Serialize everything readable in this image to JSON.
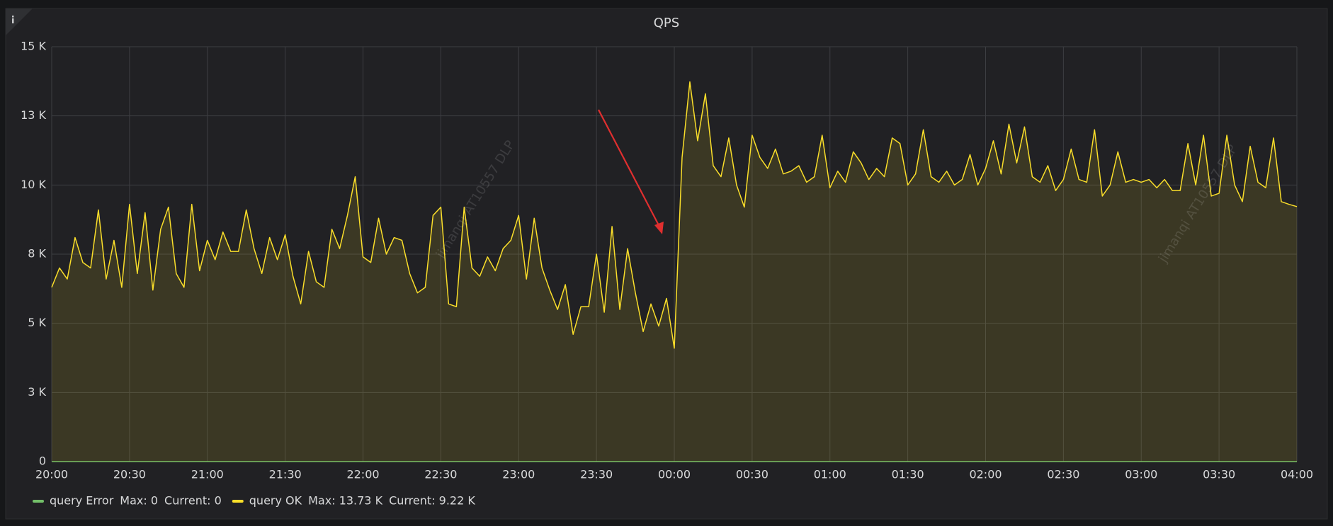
{
  "chart_data": {
    "type": "line",
    "title": "QPS",
    "watermark": "jimanqi AT10557 DLP",
    "ylim": [
      0,
      15000
    ],
    "yticks": [
      0,
      {
        "value": 2500,
        "label": "3 K"
      },
      {
        "value": 5000,
        "label": "5 K"
      },
      {
        "value": 7500,
        "label": "8 K"
      },
      {
        "value": 10000,
        "label": "10 K"
      },
      {
        "value": 12500,
        "label": "13 K"
      },
      {
        "value": 15000,
        "label": "15 K"
      }
    ],
    "xlim": [
      "20:00",
      "04:00"
    ],
    "xticks": [
      "20:00",
      "20:30",
      "21:00",
      "21:30",
      "22:00",
      "22:30",
      "23:00",
      "23:30",
      "00:00",
      "00:30",
      "01:00",
      "01:30",
      "02:00",
      "02:30",
      "03:00",
      "03:30",
      "04:00"
    ],
    "grid": true,
    "x": [
      "20:00",
      "20:03",
      "20:06",
      "20:09",
      "20:12",
      "20:15",
      "20:18",
      "20:21",
      "20:24",
      "20:27",
      "20:30",
      "20:33",
      "20:36",
      "20:39",
      "20:42",
      "20:45",
      "20:48",
      "20:51",
      "20:54",
      "20:57",
      "21:00",
      "21:03",
      "21:06",
      "21:09",
      "21:12",
      "21:15",
      "21:18",
      "21:21",
      "21:24",
      "21:27",
      "21:30",
      "21:33",
      "21:36",
      "21:39",
      "21:42",
      "21:45",
      "21:48",
      "21:51",
      "21:54",
      "21:57",
      "22:00",
      "22:03",
      "22:06",
      "22:09",
      "22:12",
      "22:15",
      "22:18",
      "22:21",
      "22:24",
      "22:27",
      "22:30",
      "22:33",
      "22:36",
      "22:39",
      "22:42",
      "22:45",
      "22:48",
      "22:51",
      "22:54",
      "22:57",
      "23:00",
      "23:03",
      "23:06",
      "23:09",
      "23:12",
      "23:15",
      "23:18",
      "23:21",
      "23:24",
      "23:27",
      "23:30",
      "23:33",
      "23:36",
      "23:39",
      "23:42",
      "23:45",
      "23:48",
      "23:51",
      "23:54",
      "23:57",
      "00:00",
      "00:03",
      "00:06",
      "00:09",
      "00:12",
      "00:15",
      "00:18",
      "00:21",
      "00:24",
      "00:27",
      "00:30",
      "00:33",
      "00:36",
      "00:39",
      "00:42",
      "00:45",
      "00:48",
      "00:51",
      "00:54",
      "00:57",
      "01:00",
      "01:03",
      "01:06",
      "01:09",
      "01:12",
      "01:15",
      "01:18",
      "01:21",
      "01:24",
      "01:27",
      "01:30",
      "01:33",
      "01:36",
      "01:39",
      "01:42",
      "01:45",
      "01:48",
      "01:51",
      "01:54",
      "01:57",
      "02:00",
      "02:03",
      "02:06",
      "02:09",
      "02:12",
      "02:15",
      "02:18",
      "02:21",
      "02:24",
      "02:27",
      "02:30",
      "02:33",
      "02:36",
      "02:39",
      "02:42",
      "02:45",
      "02:48",
      "02:51",
      "02:54",
      "02:57",
      "03:00",
      "03:03",
      "03:06",
      "03:09",
      "03:12",
      "03:15",
      "03:18",
      "03:21",
      "03:24",
      "03:27",
      "03:30",
      "03:33",
      "03:36",
      "03:39",
      "03:42",
      "03:45",
      "03:48",
      "03:51",
      "03:54",
      "03:57",
      "04:00"
    ],
    "series": [
      {
        "name": "query Error",
        "color": "#73bf69",
        "fill": false,
        "legend_values": [
          "Max: 0",
          "Current: 0"
        ],
        "values": [
          0,
          0,
          0,
          0,
          0,
          0,
          0,
          0,
          0,
          0,
          0,
          0,
          0,
          0,
          0,
          0,
          0,
          0,
          0,
          0,
          0,
          0,
          0,
          0,
          0,
          0,
          0,
          0,
          0,
          0,
          0,
          0,
          0,
          0,
          0,
          0,
          0,
          0,
          0,
          0,
          0,
          0,
          0,
          0,
          0,
          0,
          0,
          0,
          0,
          0,
          0,
          0,
          0,
          0,
          0,
          0,
          0,
          0,
          0,
          0,
          0,
          0,
          0,
          0,
          0,
          0,
          0,
          0,
          0,
          0,
          0,
          0,
          0,
          0,
          0,
          0,
          0,
          0,
          0,
          0,
          0,
          0,
          0,
          0,
          0,
          0,
          0,
          0,
          0,
          0,
          0,
          0,
          0,
          0,
          0,
          0,
          0,
          0,
          0,
          0,
          0,
          0,
          0,
          0,
          0,
          0,
          0,
          0,
          0,
          0,
          0,
          0,
          0,
          0,
          0,
          0,
          0,
          0,
          0,
          0,
          0,
          0,
          0,
          0,
          0,
          0,
          0,
          0,
          0,
          0,
          0,
          0,
          0,
          0,
          0,
          0,
          0,
          0,
          0,
          0,
          0,
          0,
          0,
          0,
          0,
          0,
          0,
          0,
          0,
          0,
          0,
          0,
          0,
          0,
          0,
          0,
          0,
          0,
          0,
          0,
          0
        ]
      },
      {
        "name": "query OK",
        "color": "#fade2a",
        "fill": true,
        "legend_values": [
          "Max: 13.73 K",
          "Current: 9.22 K"
        ],
        "values": [
          6300,
          7000,
          6600,
          8100,
          7200,
          7000,
          9100,
          6600,
          8000,
          6300,
          9300,
          6800,
          9000,
          6200,
          8400,
          9200,
          6800,
          6300,
          9300,
          6900,
          8000,
          7300,
          8300,
          7600,
          7600,
          9100,
          7700,
          6800,
          8100,
          7300,
          8200,
          6700,
          5700,
          7600,
          6500,
          6300,
          8400,
          7700,
          8900,
          10300,
          7400,
          7200,
          8800,
          7500,
          8100,
          8000,
          6800,
          6100,
          6300,
          8900,
          9200,
          5700,
          5600,
          9200,
          7000,
          6700,
          7400,
          6900,
          7700,
          8000,
          8900,
          6600,
          8800,
          7000,
          6200,
          5500,
          6400,
          4600,
          5600,
          5600,
          7500,
          5400,
          8500,
          5500,
          7700,
          6100,
          4700,
          5700,
          4900,
          5900,
          4100,
          11000,
          13730,
          11600,
          13300,
          10700,
          10300,
          11700,
          10000,
          9200,
          11800,
          11000,
          10600,
          11300,
          10400,
          10500,
          10700,
          10100,
          10300,
          11800,
          9900,
          10500,
          10100,
          11200,
          10800,
          10200,
          10600,
          10300,
          11700,
          11500,
          10000,
          10400,
          12000,
          10300,
          10100,
          10500,
          10000,
          10200,
          11100,
          10000,
          10600,
          11600,
          10400,
          12200,
          10800,
          12100,
          10300,
          10100,
          10700,
          9800,
          10200,
          11300,
          10200,
          10100,
          12000,
          9600,
          10000,
          11200,
          10100,
          10200,
          10100,
          10200,
          9900,
          10200,
          9800,
          9800,
          11500,
          10000,
          11800,
          9600,
          9700,
          11800,
          10000,
          9400,
          11400,
          10100,
          9900,
          11700,
          9400,
          9300,
          9220
        ]
      }
    ]
  }
}
